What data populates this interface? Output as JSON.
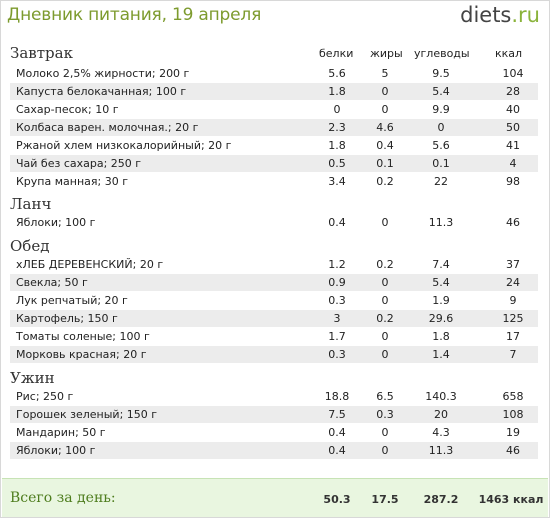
{
  "header": {
    "title": "Дневник питания, 19 апреля",
    "logo_main": "diets",
    "logo_suffix": ".ru"
  },
  "columns": {
    "protein": "белки",
    "fat": "жиры",
    "carbs": "углеводы",
    "kcal": "ккал"
  },
  "meals": [
    {
      "title": "Завтрак",
      "items": [
        [
          "Молоко 2,5% жирности; 200 г",
          "5.6",
          "5",
          "9.5",
          "104"
        ],
        [
          "Капуста белокачанная; 100 г",
          "1.8",
          "0",
          "5.4",
          "28"
        ],
        [
          "Сахар-песок; 10 г",
          "0",
          "0",
          "9.9",
          "40"
        ],
        [
          "Колбаса варен. молочная.; 20 г",
          "2.3",
          "4.6",
          "0",
          "50"
        ],
        [
          "Ржаной хлем низкокалорийный; 20 г",
          "1.8",
          "0.4",
          "5.6",
          "41"
        ],
        [
          "Чай без сахара; 250 г",
          "0.5",
          "0.1",
          "0.1",
          "4"
        ],
        [
          "Крупа манная; 30 г",
          "3.4",
          "0.2",
          "22",
          "98"
        ]
      ]
    },
    {
      "title": "Ланч",
      "items": [
        [
          "Яблоки; 100 г",
          "0.4",
          "0",
          "11.3",
          "46"
        ]
      ]
    },
    {
      "title": "Обед",
      "items": [
        [
          "хЛЕБ ДЕРЕВЕНСКИЙ; 20 г",
          "1.2",
          "0.2",
          "7.4",
          "37"
        ],
        [
          "Свекла; 50 г",
          "0.9",
          "0",
          "5.4",
          "24"
        ],
        [
          "Лук репчатый; 20 г",
          "0.3",
          "0",
          "1.9",
          "9"
        ],
        [
          "Картофель; 150 г",
          "3",
          "0.2",
          "29.6",
          "125"
        ],
        [
          "Томаты соленые; 100 г",
          "1.7",
          "0",
          "1.8",
          "17"
        ],
        [
          "Морковь красная; 20 г",
          "0.3",
          "0",
          "1.4",
          "7"
        ]
      ]
    },
    {
      "title": "Ужин",
      "items": [
        [
          "Рис; 250 г",
          "18.8",
          "6.5",
          "140.3",
          "658"
        ],
        [
          "Горошек зеленый; 150 г",
          "7.5",
          "0.3",
          "20",
          "108"
        ],
        [
          "Мандарин; 50 г",
          "0.4",
          "0",
          "4.3",
          "19"
        ],
        [
          "Яблоки; 100 г",
          "0.4",
          "0",
          "11.3",
          "46"
        ]
      ]
    }
  ],
  "totals": {
    "label": "Всего за день:",
    "protein": "50.3",
    "fat": "17.5",
    "carbs": "287.2",
    "kcal": "1463 ккал"
  }
}
